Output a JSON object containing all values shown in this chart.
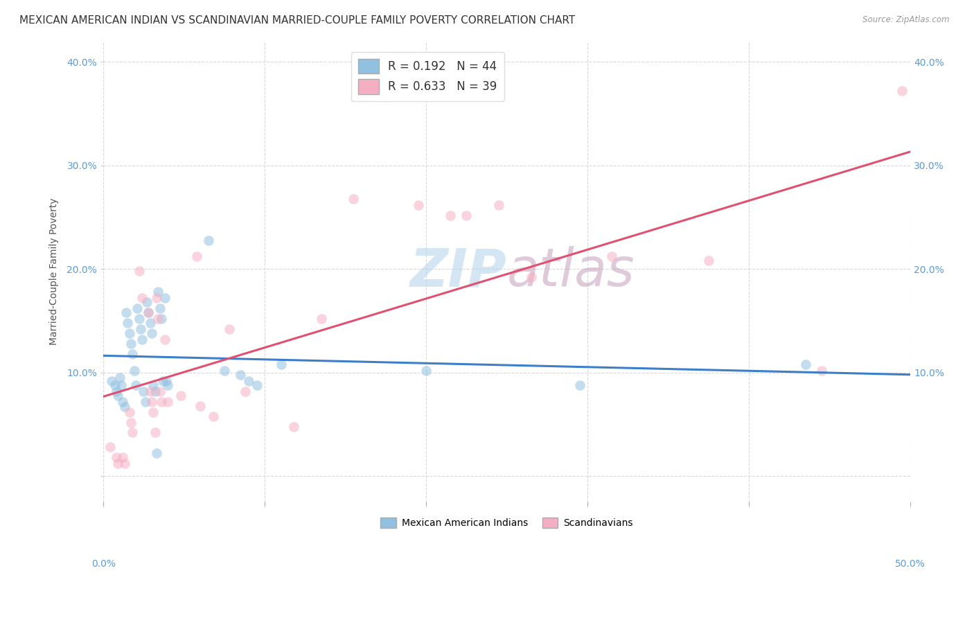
{
  "title": "MEXICAN AMERICAN INDIAN VS SCANDINAVIAN MARRIED-COUPLE FAMILY POVERTY CORRELATION CHART",
  "source": "Source: ZipAtlas.com",
  "ylabel": "Married-Couple Family Poverty",
  "xlim": [
    0.0,
    0.5
  ],
  "ylim": [
    -0.025,
    0.42
  ],
  "xticks": [
    0.0,
    0.1,
    0.2,
    0.3,
    0.4,
    0.5
  ],
  "xticklabels": [
    "0.0%",
    "",
    "",
    "",
    "",
    "50.0%"
  ],
  "yticks": [
    0.0,
    0.1,
    0.2,
    0.3,
    0.4
  ],
  "yticklabels": [
    "",
    "10.0%",
    "20.0%",
    "30.0%",
    "40.0%"
  ],
  "legend_labels": [
    "Mexican American Indians",
    "Scandinavians"
  ],
  "R_blue": 0.192,
  "N_blue": 44,
  "R_pink": 0.633,
  "N_pink": 39,
  "watermark_zip": "ZIP",
  "watermark_atlas": "atlas",
  "blue_color": "#92c0e0",
  "pink_color": "#f5afc3",
  "blue_scatter": [
    [
      0.005,
      0.092
    ],
    [
      0.007,
      0.088
    ],
    [
      0.008,
      0.082
    ],
    [
      0.009,
      0.078
    ],
    [
      0.01,
      0.095
    ],
    [
      0.011,
      0.088
    ],
    [
      0.012,
      0.072
    ],
    [
      0.013,
      0.067
    ],
    [
      0.014,
      0.158
    ],
    [
      0.015,
      0.148
    ],
    [
      0.016,
      0.138
    ],
    [
      0.017,
      0.128
    ],
    [
      0.018,
      0.118
    ],
    [
      0.019,
      0.102
    ],
    [
      0.02,
      0.088
    ],
    [
      0.021,
      0.162
    ],
    [
      0.022,
      0.152
    ],
    [
      0.023,
      0.142
    ],
    [
      0.024,
      0.132
    ],
    [
      0.025,
      0.082
    ],
    [
      0.026,
      0.072
    ],
    [
      0.027,
      0.168
    ],
    [
      0.028,
      0.158
    ],
    [
      0.029,
      0.148
    ],
    [
      0.03,
      0.138
    ],
    [
      0.031,
      0.088
    ],
    [
      0.032,
      0.082
    ],
    [
      0.033,
      0.022
    ],
    [
      0.034,
      0.178
    ],
    [
      0.035,
      0.162
    ],
    [
      0.036,
      0.152
    ],
    [
      0.037,
      0.092
    ],
    [
      0.038,
      0.172
    ],
    [
      0.039,
      0.092
    ],
    [
      0.04,
      0.088
    ],
    [
      0.065,
      0.228
    ],
    [
      0.075,
      0.102
    ],
    [
      0.085,
      0.098
    ],
    [
      0.09,
      0.092
    ],
    [
      0.095,
      0.088
    ],
    [
      0.11,
      0.108
    ],
    [
      0.2,
      0.102
    ],
    [
      0.295,
      0.088
    ],
    [
      0.435,
      0.108
    ]
  ],
  "pink_scatter": [
    [
      0.004,
      0.028
    ],
    [
      0.008,
      0.018
    ],
    [
      0.009,
      0.012
    ],
    [
      0.012,
      0.018
    ],
    [
      0.013,
      0.012
    ],
    [
      0.016,
      0.062
    ],
    [
      0.017,
      0.052
    ],
    [
      0.018,
      0.042
    ],
    [
      0.022,
      0.198
    ],
    [
      0.024,
      0.172
    ],
    [
      0.028,
      0.158
    ],
    [
      0.029,
      0.082
    ],
    [
      0.03,
      0.072
    ],
    [
      0.031,
      0.062
    ],
    [
      0.032,
      0.042
    ],
    [
      0.033,
      0.172
    ],
    [
      0.034,
      0.152
    ],
    [
      0.035,
      0.082
    ],
    [
      0.036,
      0.072
    ],
    [
      0.038,
      0.132
    ],
    [
      0.04,
      0.072
    ],
    [
      0.048,
      0.078
    ],
    [
      0.058,
      0.212
    ],
    [
      0.06,
      0.068
    ],
    [
      0.068,
      0.058
    ],
    [
      0.078,
      0.142
    ],
    [
      0.088,
      0.082
    ],
    [
      0.118,
      0.048
    ],
    [
      0.135,
      0.152
    ],
    [
      0.155,
      0.268
    ],
    [
      0.195,
      0.262
    ],
    [
      0.215,
      0.252
    ],
    [
      0.225,
      0.252
    ],
    [
      0.245,
      0.262
    ],
    [
      0.265,
      0.192
    ],
    [
      0.315,
      0.212
    ],
    [
      0.375,
      0.208
    ],
    [
      0.445,
      0.102
    ],
    [
      0.495,
      0.372
    ]
  ],
  "background_color": "#ffffff",
  "grid_color": "#d8d8d8",
  "title_fontsize": 11,
  "axis_label_fontsize": 10,
  "tick_fontsize": 10,
  "scatter_size": 110,
  "scatter_alpha": 0.55
}
